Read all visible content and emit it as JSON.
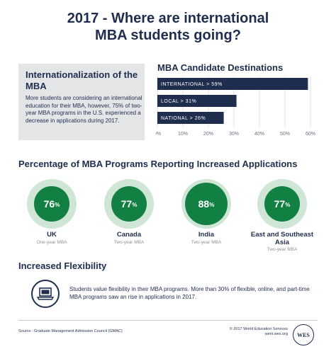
{
  "title_line1": "2017 - Where are international",
  "title_line2": "MBA students going?",
  "intro": {
    "heading": "Internationalization of the MBA",
    "body": "More students are considering an international education for their MBA, however, 75% of two-year MBA programs in the U.S. experienced a decrease in applications during 2017."
  },
  "chart_data": {
    "type": "bar",
    "orientation": "horizontal",
    "title": "MBA Candidate Destinations",
    "categories": [
      "INTERNATIONAL > 59%",
      "LOCAL > 31%",
      "NATIONAL > 26%"
    ],
    "values": [
      59,
      31,
      26
    ],
    "xlim": [
      0,
      60
    ],
    "xticks": [
      "0%",
      "10%",
      "20%",
      "30%",
      "40%",
      "50%",
      "60%"
    ],
    "bar_color": "#1f2d4e",
    "grid": true
  },
  "programs_section": {
    "title": "Percentage of MBA Programs Reporting Increased Applications",
    "items": [
      {
        "value": 76,
        "num_label": "76",
        "pct_label": "%",
        "country": "UK",
        "program": "One-year MBA"
      },
      {
        "value": 77,
        "num_label": "77",
        "pct_label": "%",
        "country": "Canada",
        "program": "Two-year MBA"
      },
      {
        "value": 88,
        "num_label": "88",
        "pct_label": "%",
        "country": "India",
        "program": "Two-year MBA"
      },
      {
        "value": 77,
        "num_label": "77",
        "pct_label": "%",
        "country": "East and Southeast Asia",
        "program": "Two-year MBA"
      }
    ],
    "ring_color": "#cfe5d6",
    "fill_color": "#128042"
  },
  "flex_section": {
    "title": "Increased Flexibility",
    "icon": "laptop-icon",
    "text": "Students value flexibility in their MBA programs. More than 30% of flexible, online, and part-time MBA programs saw an rise in applications in 2017."
  },
  "footer": {
    "source": "Source : Graduate Management Admission Council (GMAC)",
    "copyright": "© 2017 World Education Services",
    "url": "wenr.wes.org",
    "logo_text": "WES"
  }
}
